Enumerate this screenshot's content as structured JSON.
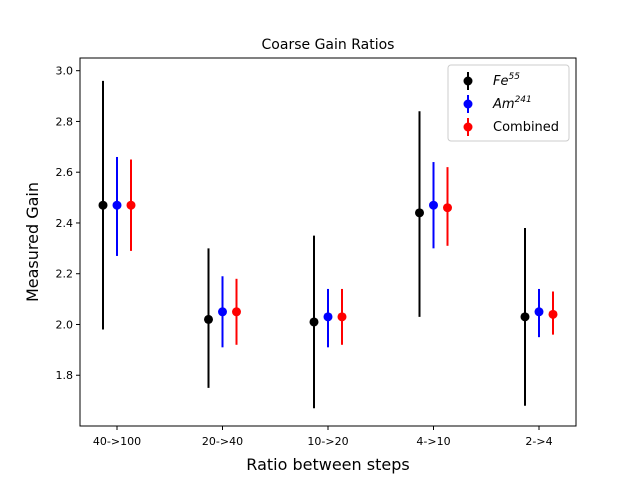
{
  "chart_data": {
    "type": "scatter",
    "title": "Coarse Gain Ratios",
    "xlabel": "Ratio between steps",
    "ylabel": "Measured Gain",
    "categories": [
      "40->100",
      "20->40",
      "10->20",
      "4->10",
      "2->4"
    ],
    "ylim": [
      1.6,
      3.05
    ],
    "yticks": [
      1.8,
      2.0,
      2.2,
      2.4,
      2.6,
      2.8,
      3.0
    ],
    "ytick_labels": [
      "1.8",
      "2.0",
      "2.2",
      "2.4",
      "2.6",
      "2.8",
      "3.0"
    ],
    "grid": false,
    "legend_position": "top-right",
    "series": [
      {
        "name": "Fe",
        "name_superscript": "55",
        "color": "#000000",
        "values": [
          2.47,
          2.02,
          2.01,
          2.44,
          2.03
        ],
        "err_low": [
          1.98,
          1.75,
          1.67,
          2.03,
          1.68
        ],
        "err_high": [
          2.96,
          2.3,
          2.35,
          2.84,
          2.38
        ]
      },
      {
        "name": "Am",
        "name_superscript": "241",
        "color": "#0000ff",
        "values": [
          2.47,
          2.05,
          2.03,
          2.47,
          2.05
        ],
        "err_low": [
          2.27,
          1.91,
          1.91,
          2.3,
          1.95
        ],
        "err_high": [
          2.66,
          2.19,
          2.14,
          2.64,
          2.14
        ]
      },
      {
        "name": "Combined",
        "name_superscript": "",
        "color": "#ff0000",
        "values": [
          2.47,
          2.05,
          2.03,
          2.46,
          2.04
        ],
        "err_low": [
          2.29,
          1.92,
          1.92,
          2.31,
          1.96
        ],
        "err_high": [
          2.65,
          2.18,
          2.14,
          2.62,
          2.13
        ]
      }
    ]
  }
}
